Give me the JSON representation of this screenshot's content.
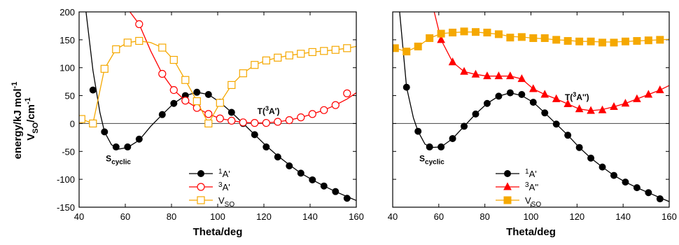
{
  "colors": {
    "singlet": "#000000",
    "triplet": "#ff0000",
    "vso": "#f5a800",
    "zero_line": "#444444"
  },
  "ylabel": {
    "line1": "energy/kJ mol",
    "line1_sup": "-1",
    "line2a": "V",
    "line2_sub": "SO",
    "line2b": "/cm",
    "line2_sup": "-1"
  },
  "chart_data": [
    {
      "type": "line",
      "panel": "left",
      "xlabel": "Theta/deg",
      "xlim": [
        40,
        160
      ],
      "ylim": [
        -150,
        200
      ],
      "xticks": [
        40,
        60,
        80,
        100,
        120,
        140,
        160
      ],
      "yticks": [
        -150,
        -100,
        -50,
        0,
        50,
        100,
        150,
        200
      ],
      "legend_position": "bottom-center",
      "annotations": [
        {
          "text": "S",
          "sub": "cyclic",
          "x": 57,
          "y": -68
        },
        {
          "text": "T(",
          "sup": "3",
          "tail": "A')",
          "x": 122,
          "y": 17
        }
      ],
      "series": [
        {
          "name": "1A'",
          "name_sup": "1",
          "name_main": "A'",
          "color": "#000000",
          "marker": "circle-filled",
          "curve": [
            [
              40,
              360
            ],
            [
              43,
              200
            ],
            [
              46,
              95
            ],
            [
              49,
              20
            ],
            [
              51,
              -15
            ],
            [
              54,
              -38
            ],
            [
              57,
              -46
            ],
            [
              61,
              -43
            ],
            [
              66,
              -30
            ],
            [
              71,
              -5
            ],
            [
              76,
              16
            ],
            [
              81,
              36
            ],
            [
              86,
              50
            ],
            [
              91,
              56
            ],
            [
              96,
              52
            ],
            [
              101,
              38
            ],
            [
              106,
              20
            ],
            [
              111,
              0
            ],
            [
              116,
              -20
            ],
            [
              121,
              -40
            ],
            [
              126,
              -58
            ],
            [
              131,
              -74
            ],
            [
              136,
              -89
            ],
            [
              141,
              -101
            ],
            [
              146,
              -112
            ],
            [
              151,
              -122
            ],
            [
              156,
              -131
            ],
            [
              160,
              -138
            ]
          ],
          "x": [
            46,
            51,
            56,
            61,
            66,
            76,
            81,
            86,
            91,
            96,
            101,
            106,
            111,
            116,
            121,
            126,
            131,
            136,
            141,
            146,
            151,
            156
          ],
          "y": [
            60,
            -15,
            -42,
            -42,
            -28,
            16,
            36,
            50,
            56,
            52,
            38,
            20,
            0,
            -20,
            -42,
            -60,
            -76,
            -89,
            -101,
            -112,
            -122,
            -134
          ]
        },
        {
          "name": "3A'",
          "name_sup": "3",
          "name_main": "A'",
          "color": "#ff0000",
          "marker": "circle-open",
          "curve": [
            [
              62,
              200
            ],
            [
              66,
              178
            ],
            [
              71,
              130
            ],
            [
              76,
              89
            ],
            [
              81,
              60
            ],
            [
              86,
              41
            ],
            [
              91,
              28
            ],
            [
              96,
              17
            ],
            [
              101,
              9
            ],
            [
              106,
              5
            ],
            [
              111,
              2
            ],
            [
              116,
              1
            ],
            [
              121,
              1
            ],
            [
              126,
              3
            ],
            [
              131,
              6
            ],
            [
              136,
              11
            ],
            [
              141,
              17
            ],
            [
              146,
              24
            ],
            [
              151,
              33
            ],
            [
              156,
              44
            ],
            [
              160,
              55
            ]
          ],
          "x": [
            66,
            76,
            81,
            86,
            91,
            96,
            101,
            106,
            111,
            116,
            121,
            126,
            131,
            136,
            141,
            146,
            151,
            156
          ],
          "y": [
            178,
            89,
            60,
            41,
            28,
            17,
            9,
            5,
            2,
            1,
            1,
            3,
            6,
            11,
            17,
            24,
            33,
            54
          ]
        },
        {
          "name": "VSO",
          "name_main": "V",
          "name_sub": "SO",
          "color": "#f5a800",
          "marker": "square-open",
          "curve": [
            [
              41,
              8
            ],
            [
              46,
              0
            ],
            [
              51,
              98
            ],
            [
              56,
              133
            ],
            [
              61,
              145
            ],
            [
              66,
              148
            ],
            [
              71,
              145
            ],
            [
              76,
              136
            ],
            [
              81,
              114
            ],
            [
              86,
              78
            ],
            [
              91,
              40
            ],
            [
              96,
              0
            ],
            [
              101,
              37
            ],
            [
              106,
              69
            ],
            [
              111,
              90
            ],
            [
              116,
              105
            ],
            [
              121,
              113
            ],
            [
              126,
              118
            ],
            [
              131,
              122
            ],
            [
              136,
              125
            ],
            [
              141,
              128
            ],
            [
              146,
              130
            ],
            [
              151,
              132
            ],
            [
              156,
              135
            ],
            [
              160,
              138
            ]
          ],
          "x": [
            41,
            46,
            51,
            56,
            61,
            66,
            76,
            81,
            86,
            91,
            96,
            101,
            106,
            111,
            116,
            121,
            126,
            131,
            136,
            141,
            146,
            151,
            156
          ],
          "y": [
            8,
            0,
            98,
            133,
            145,
            148,
            136,
            114,
            78,
            40,
            0,
            37,
            69,
            90,
            105,
            113,
            118,
            122,
            125,
            128,
            130,
            132,
            135
          ]
        }
      ]
    },
    {
      "type": "line",
      "panel": "right",
      "xlabel": "Theta/deg",
      "xlim": [
        40,
        160
      ],
      "ylim": [
        -150,
        200
      ],
      "xticks": [
        40,
        60,
        80,
        100,
        120,
        140,
        160
      ],
      "yticks": [
        -150,
        -100,
        -50,
        0,
        50,
        100,
        150,
        200
      ],
      "legend_position": "bottom-center",
      "annotations": [
        {
          "text": "S",
          "sub": "cyclic",
          "x": 57,
          "y": -68
        },
        {
          "text": "T(",
          "sup": "3",
          "tail": "A'')",
          "x": 120,
          "y": 42
        }
      ],
      "series": [
        {
          "name": "1A'",
          "name_sup": "1",
          "name_main": "A'",
          "color": "#000000",
          "marker": "circle-filled",
          "curve": [
            [
              40,
              360
            ],
            [
              43,
              200
            ],
            [
              46,
              65
            ],
            [
              49,
              10
            ],
            [
              51,
              -14
            ],
            [
              54,
              -37
            ],
            [
              57,
              -43
            ],
            [
              61,
              -42
            ],
            [
              66,
              -27
            ],
            [
              71,
              -5
            ],
            [
              76,
              17
            ],
            [
              81,
              36
            ],
            [
              86,
              49
            ],
            [
              91,
              55
            ],
            [
              96,
              50
            ],
            [
              101,
              38
            ],
            [
              106,
              19
            ],
            [
              111,
              -1
            ],
            [
              116,
              -21
            ],
            [
              121,
              -43
            ],
            [
              126,
              -62
            ],
            [
              131,
              -78
            ],
            [
              136,
              -93
            ],
            [
              141,
              -105
            ],
            [
              146,
              -115
            ],
            [
              151,
              -124
            ],
            [
              156,
              -133
            ],
            [
              160,
              -140
            ]
          ],
          "x": [
            46,
            51,
            56,
            61,
            66,
            71,
            76,
            81,
            86,
            91,
            96,
            101,
            106,
            111,
            116,
            121,
            126,
            131,
            136,
            141,
            146,
            151,
            156
          ],
          "y": [
            65,
            -14,
            -42,
            -42,
            -27,
            -5,
            17,
            36,
            49,
            55,
            52,
            38,
            19,
            -1,
            -21,
            -43,
            -62,
            -78,
            -93,
            -105,
            -115,
            -124,
            -135
          ]
        },
        {
          "name": "3A''",
          "name_sup": "3",
          "name_main": "A''",
          "color": "#ff0000",
          "marker": "triangle-filled",
          "curve": [
            [
              58,
              200
            ],
            [
              61,
              150
            ],
            [
              66,
              110
            ],
            [
              71,
              93
            ],
            [
              76,
              88
            ],
            [
              81,
              85
            ],
            [
              86,
              85
            ],
            [
              91,
              85
            ],
            [
              96,
              80
            ],
            [
              101,
              62
            ],
            [
              106,
              52
            ],
            [
              111,
              44
            ],
            [
              116,
              35
            ],
            [
              121,
              26
            ],
            [
              126,
              23
            ],
            [
              131,
              25
            ],
            [
              136,
              30
            ],
            [
              141,
              36
            ],
            [
              146,
              44
            ],
            [
              151,
              52
            ],
            [
              156,
              60
            ],
            [
              160,
              68
            ]
          ],
          "x": [
            61,
            66,
            71,
            76,
            81,
            86,
            91,
            96,
            101,
            106,
            111,
            116,
            121,
            126,
            131,
            136,
            141,
            146,
            151,
            156
          ],
          "y": [
            150,
            110,
            93,
            88,
            85,
            85,
            85,
            80,
            62,
            52,
            44,
            35,
            26,
            23,
            24,
            30,
            36,
            44,
            52,
            60
          ]
        },
        {
          "name": "VSO",
          "name_main": "V",
          "name_sub": "SO",
          "color": "#f5a800",
          "marker": "square-filled",
          "curve": [
            [
              41,
              135
            ],
            [
              46,
              129
            ],
            [
              51,
              138
            ],
            [
              56,
              153
            ],
            [
              61,
              161
            ],
            [
              66,
              163
            ],
            [
              71,
              164
            ],
            [
              76,
              164
            ],
            [
              81,
              162
            ],
            [
              86,
              160
            ],
            [
              91,
              156
            ],
            [
              96,
              155
            ],
            [
              101,
              153
            ],
            [
              106,
              152
            ],
            [
              111,
              150
            ],
            [
              116,
              149
            ],
            [
              121,
              147
            ],
            [
              126,
              147
            ],
            [
              131,
              146
            ],
            [
              136,
              146
            ],
            [
              141,
              147
            ],
            [
              146,
              148
            ],
            [
              151,
              149
            ],
            [
              156,
              150
            ],
            [
              160,
              151
            ]
          ],
          "x": [
            41,
            46,
            51,
            56,
            61,
            66,
            71,
            76,
            81,
            86,
            91,
            96,
            101,
            106,
            111,
            116,
            121,
            126,
            131,
            136,
            141,
            146,
            151,
            156
          ],
          "y": [
            135,
            129,
            138,
            153,
            161,
            163,
            165,
            164,
            163,
            160,
            154,
            155,
            153,
            153,
            150,
            148,
            147,
            147,
            145,
            145,
            147,
            148,
            149,
            150
          ]
        }
      ]
    }
  ]
}
